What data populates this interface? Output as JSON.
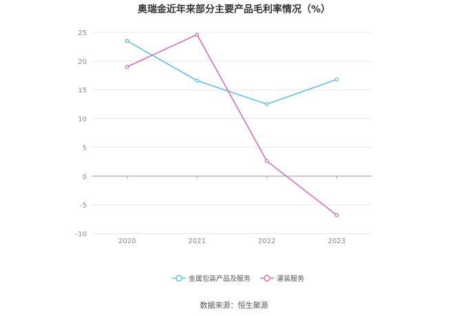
{
  "chart_data": {
    "type": "line",
    "title": "奥瑞金近年来部分主要产品毛利率情况（%）",
    "categories": [
      "2020",
      "2021",
      "2022",
      "2023"
    ],
    "series": [
      {
        "name": "金属包装产品及服务",
        "values": [
          23.5,
          16.6,
          12.5,
          16.8
        ],
        "color": "#5bc0eb"
      },
      {
        "name": "灌装服务",
        "values": [
          19.0,
          24.6,
          2.6,
          -6.8
        ],
        "color": "#d56db9"
      }
    ],
    "ylim": [
      -10,
      25
    ],
    "yticks": [
      25,
      20,
      15,
      10,
      5,
      0,
      -5,
      -10
    ],
    "grid": true,
    "legend_position": "bottom-center",
    "source": "数据来源：恒生聚源"
  }
}
